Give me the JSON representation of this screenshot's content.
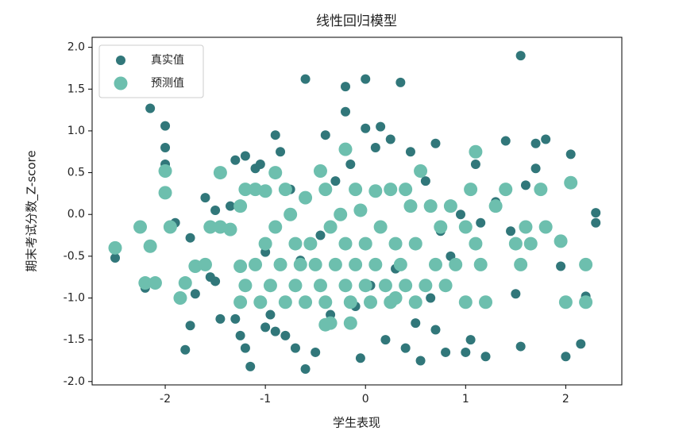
{
  "chart_data": {
    "type": "scatter",
    "title": "线性回归模型",
    "xlabel": "学生表现",
    "ylabel": "期末考试分数_Z-score",
    "xlim": [
      -2.73,
      2.56
    ],
    "ylim": [
      -2.04,
      2.12
    ],
    "xticks": [
      -2,
      -1,
      0,
      1,
      2
    ],
    "yticks": [
      {
        "value": 2,
        "label": "2.0"
      },
      {
        "value": 1.5,
        "label": "1.5"
      },
      {
        "value": 1,
        "label": "1.0"
      },
      {
        "value": 0.5,
        "label": "0.5"
      },
      {
        "value": 0,
        "label": "0.0"
      },
      {
        "value": -0.5,
        "label": "-0.5"
      },
      {
        "value": -1,
        "label": "-1.0"
      },
      {
        "value": -1.5,
        "label": "-1.5"
      },
      {
        "value": -2,
        "label": "-2.0"
      }
    ],
    "legend": "upper left",
    "series": [
      {
        "name": "真实值",
        "color": "#31777a",
        "x": [
          -2.5,
          -2.2,
          -2.15,
          -2.0,
          -2.0,
          -2.0,
          -1.9,
          -1.8,
          -1.75,
          -1.75,
          -1.7,
          -1.6,
          -1.55,
          -1.5,
          -1.5,
          -1.45,
          -1.35,
          -1.3,
          -1.3,
          -1.25,
          -1.2,
          -1.2,
          -1.15,
          -1.1,
          -1.05,
          -1.0,
          -1.0,
          -0.95,
          -0.9,
          -0.9,
          -0.85,
          -0.8,
          -0.75,
          -0.7,
          -0.65,
          -0.6,
          -0.6,
          -0.5,
          -0.45,
          -0.4,
          -0.35,
          -0.3,
          -0.2,
          -0.2,
          -0.15,
          -0.1,
          -0.05,
          0.0,
          0.0,
          -0.05,
          0.05,
          0.1,
          0.15,
          0.2,
          0.25,
          0.3,
          0.35,
          0.4,
          0.45,
          0.5,
          0.55,
          0.6,
          0.65,
          0.7,
          0.7,
          0.75,
          0.8,
          0.85,
          0.95,
          1.0,
          1.05,
          1.1,
          1.15,
          1.2,
          1.3,
          1.4,
          1.45,
          1.5,
          1.55,
          1.55,
          1.6,
          1.7,
          1.7,
          1.8,
          1.95,
          2.0,
          2.05,
          2.15,
          2.2,
          2.3,
          2.3
        ],
        "values": [
          -0.52,
          -0.88,
          1.27,
          1.06,
          0.8,
          0.6,
          -0.1,
          -1.62,
          -1.33,
          -0.28,
          -0.95,
          0.2,
          -0.75,
          -0.8,
          0.05,
          -1.25,
          0.1,
          -1.25,
          0.65,
          -1.45,
          0.7,
          -1.6,
          -1.82,
          0.55,
          0.6,
          -1.35,
          -0.45,
          -1.2,
          0.95,
          -1.4,
          0.75,
          -1.45,
          0.3,
          -1.6,
          -0.55,
          1.62,
          -1.85,
          -1.65,
          -0.25,
          0.95,
          -1.2,
          0.4,
          1.53,
          1.23,
          0.6,
          -1.1,
          0.05,
          1.62,
          1.03,
          -1.72,
          -0.85,
          0.8,
          1.05,
          -1.5,
          0.9,
          -0.65,
          1.58,
          -1.6,
          0.75,
          -1.3,
          -1.75,
          0.4,
          -1.0,
          0.85,
          -1.38,
          -0.2,
          -1.65,
          -0.5,
          0.0,
          -1.65,
          -1.5,
          0.6,
          -0.1,
          -1.7,
          0.15,
          0.88,
          -0.2,
          -0.95,
          1.9,
          -1.58,
          0.35,
          0.55,
          0.85,
          0.9,
          -0.62,
          -1.7,
          0.72,
          -1.55,
          -0.98,
          0.02,
          -0.1
        ]
      },
      {
        "name": "预测值",
        "color": "#6dbfae",
        "x": [
          -2.5,
          -2.25,
          -2.2,
          -2.1,
          -2.15,
          -2.0,
          -2.0,
          -1.95,
          -1.85,
          -1.8,
          -1.7,
          -1.6,
          -1.55,
          -1.45,
          -1.45,
          -1.35,
          -1.25,
          -1.25,
          -1.25,
          -1.2,
          -1.2,
          -1.1,
          -1.1,
          -1.05,
          -1.0,
          -1.0,
          -0.95,
          -0.9,
          -0.9,
          -0.85,
          -0.8,
          -0.8,
          -0.75,
          -0.7,
          -0.7,
          -0.65,
          -0.6,
          -0.6,
          -0.55,
          -0.5,
          -0.45,
          -0.45,
          -0.4,
          -0.4,
          -0.35,
          -0.35,
          -0.3,
          -0.25,
          -0.2,
          -0.2,
          -0.2,
          -0.15,
          -0.1,
          -0.1,
          -0.05,
          0.0,
          0.0,
          0.05,
          0.1,
          0.1,
          0.15,
          0.2,
          0.25,
          0.25,
          0.3,
          0.35,
          0.4,
          0.4,
          0.45,
          0.5,
          0.5,
          0.55,
          0.6,
          0.65,
          0.7,
          0.75,
          0.8,
          0.85,
          0.9,
          1.0,
          1.0,
          1.05,
          1.1,
          1.1,
          1.15,
          1.2,
          1.3,
          1.4,
          1.5,
          1.55,
          1.6,
          1.65,
          1.75,
          1.8,
          1.95,
          2.0,
          2.05,
          2.2,
          2.2,
          -0.4,
          -0.15,
          0.3
        ],
        "values": [
          -0.4,
          -0.15,
          -0.82,
          -0.82,
          -0.38,
          0.52,
          0.26,
          -0.15,
          -1.0,
          -0.82,
          -0.62,
          -0.6,
          -0.15,
          0.5,
          -0.15,
          -0.18,
          0.1,
          -0.62,
          -1.05,
          0.3,
          -0.85,
          0.3,
          -0.6,
          -1.05,
          0.28,
          -0.35,
          -0.85,
          0.5,
          -0.15,
          -0.6,
          -1.05,
          0.3,
          0.0,
          -0.35,
          -0.85,
          -0.6,
          0.2,
          -1.05,
          -0.35,
          -0.6,
          0.52,
          -0.85,
          0.3,
          -1.05,
          -0.15,
          -1.3,
          -0.6,
          0.0,
          0.78,
          -0.35,
          -0.85,
          -1.05,
          0.3,
          -0.6,
          0.05,
          -0.35,
          -0.85,
          -1.05,
          0.28,
          -0.6,
          -0.15,
          -0.85,
          0.3,
          -1.05,
          -0.35,
          -0.6,
          0.3,
          -0.85,
          0.1,
          -1.05,
          -0.35,
          0.52,
          -0.85,
          0.1,
          -0.6,
          -0.15,
          -0.85,
          0.1,
          -0.6,
          -1.05,
          -0.15,
          0.3,
          0.75,
          -0.35,
          -0.6,
          -1.05,
          0.1,
          0.3,
          -0.35,
          -0.6,
          -0.15,
          -0.35,
          0.3,
          -0.15,
          -0.32,
          -1.05,
          0.38,
          -1.05,
          -0.6,
          -1.32,
          -1.3,
          -1.0
        ]
      }
    ]
  }
}
